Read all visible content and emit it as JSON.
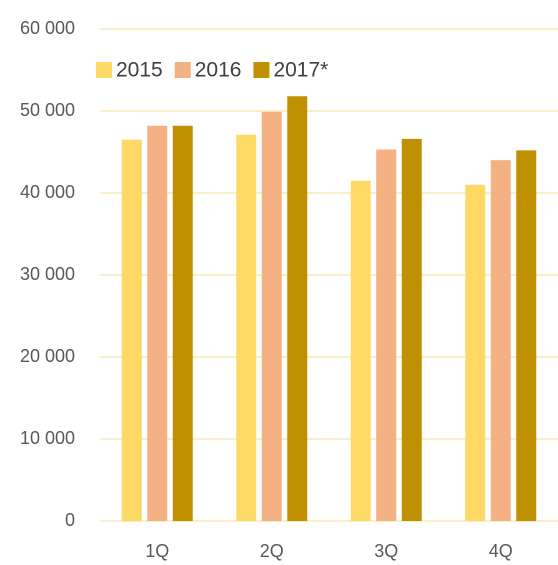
{
  "chart_data": {
    "type": "bar",
    "categories": [
      "1Q",
      "2Q",
      "3Q",
      "4Q"
    ],
    "series": [
      {
        "name": "2015",
        "color": "#ffd966",
        "values": [
          46500,
          47100,
          41500,
          41000
        ]
      },
      {
        "name": "2016",
        "color": "#f4b183",
        "values": [
          48200,
          49900,
          45300,
          44000
        ]
      },
      {
        "name": "2017*",
        "color": "#bf9000",
        "values": [
          48200,
          51800,
          46600,
          45200
        ]
      }
    ],
    "ylim": [
      0,
      60000
    ],
    "yticks": [
      {
        "value": 0,
        "label": "0"
      },
      {
        "value": 10000,
        "label": "10 000"
      },
      {
        "value": 20000,
        "label": "20 000"
      },
      {
        "value": 30000,
        "label": "30 000"
      },
      {
        "value": 40000,
        "label": "40 000"
      },
      {
        "value": 50000,
        "label": "50 000"
      },
      {
        "value": 60000,
        "label": "60 000"
      }
    ],
    "grid": true,
    "legend": "top-left"
  }
}
